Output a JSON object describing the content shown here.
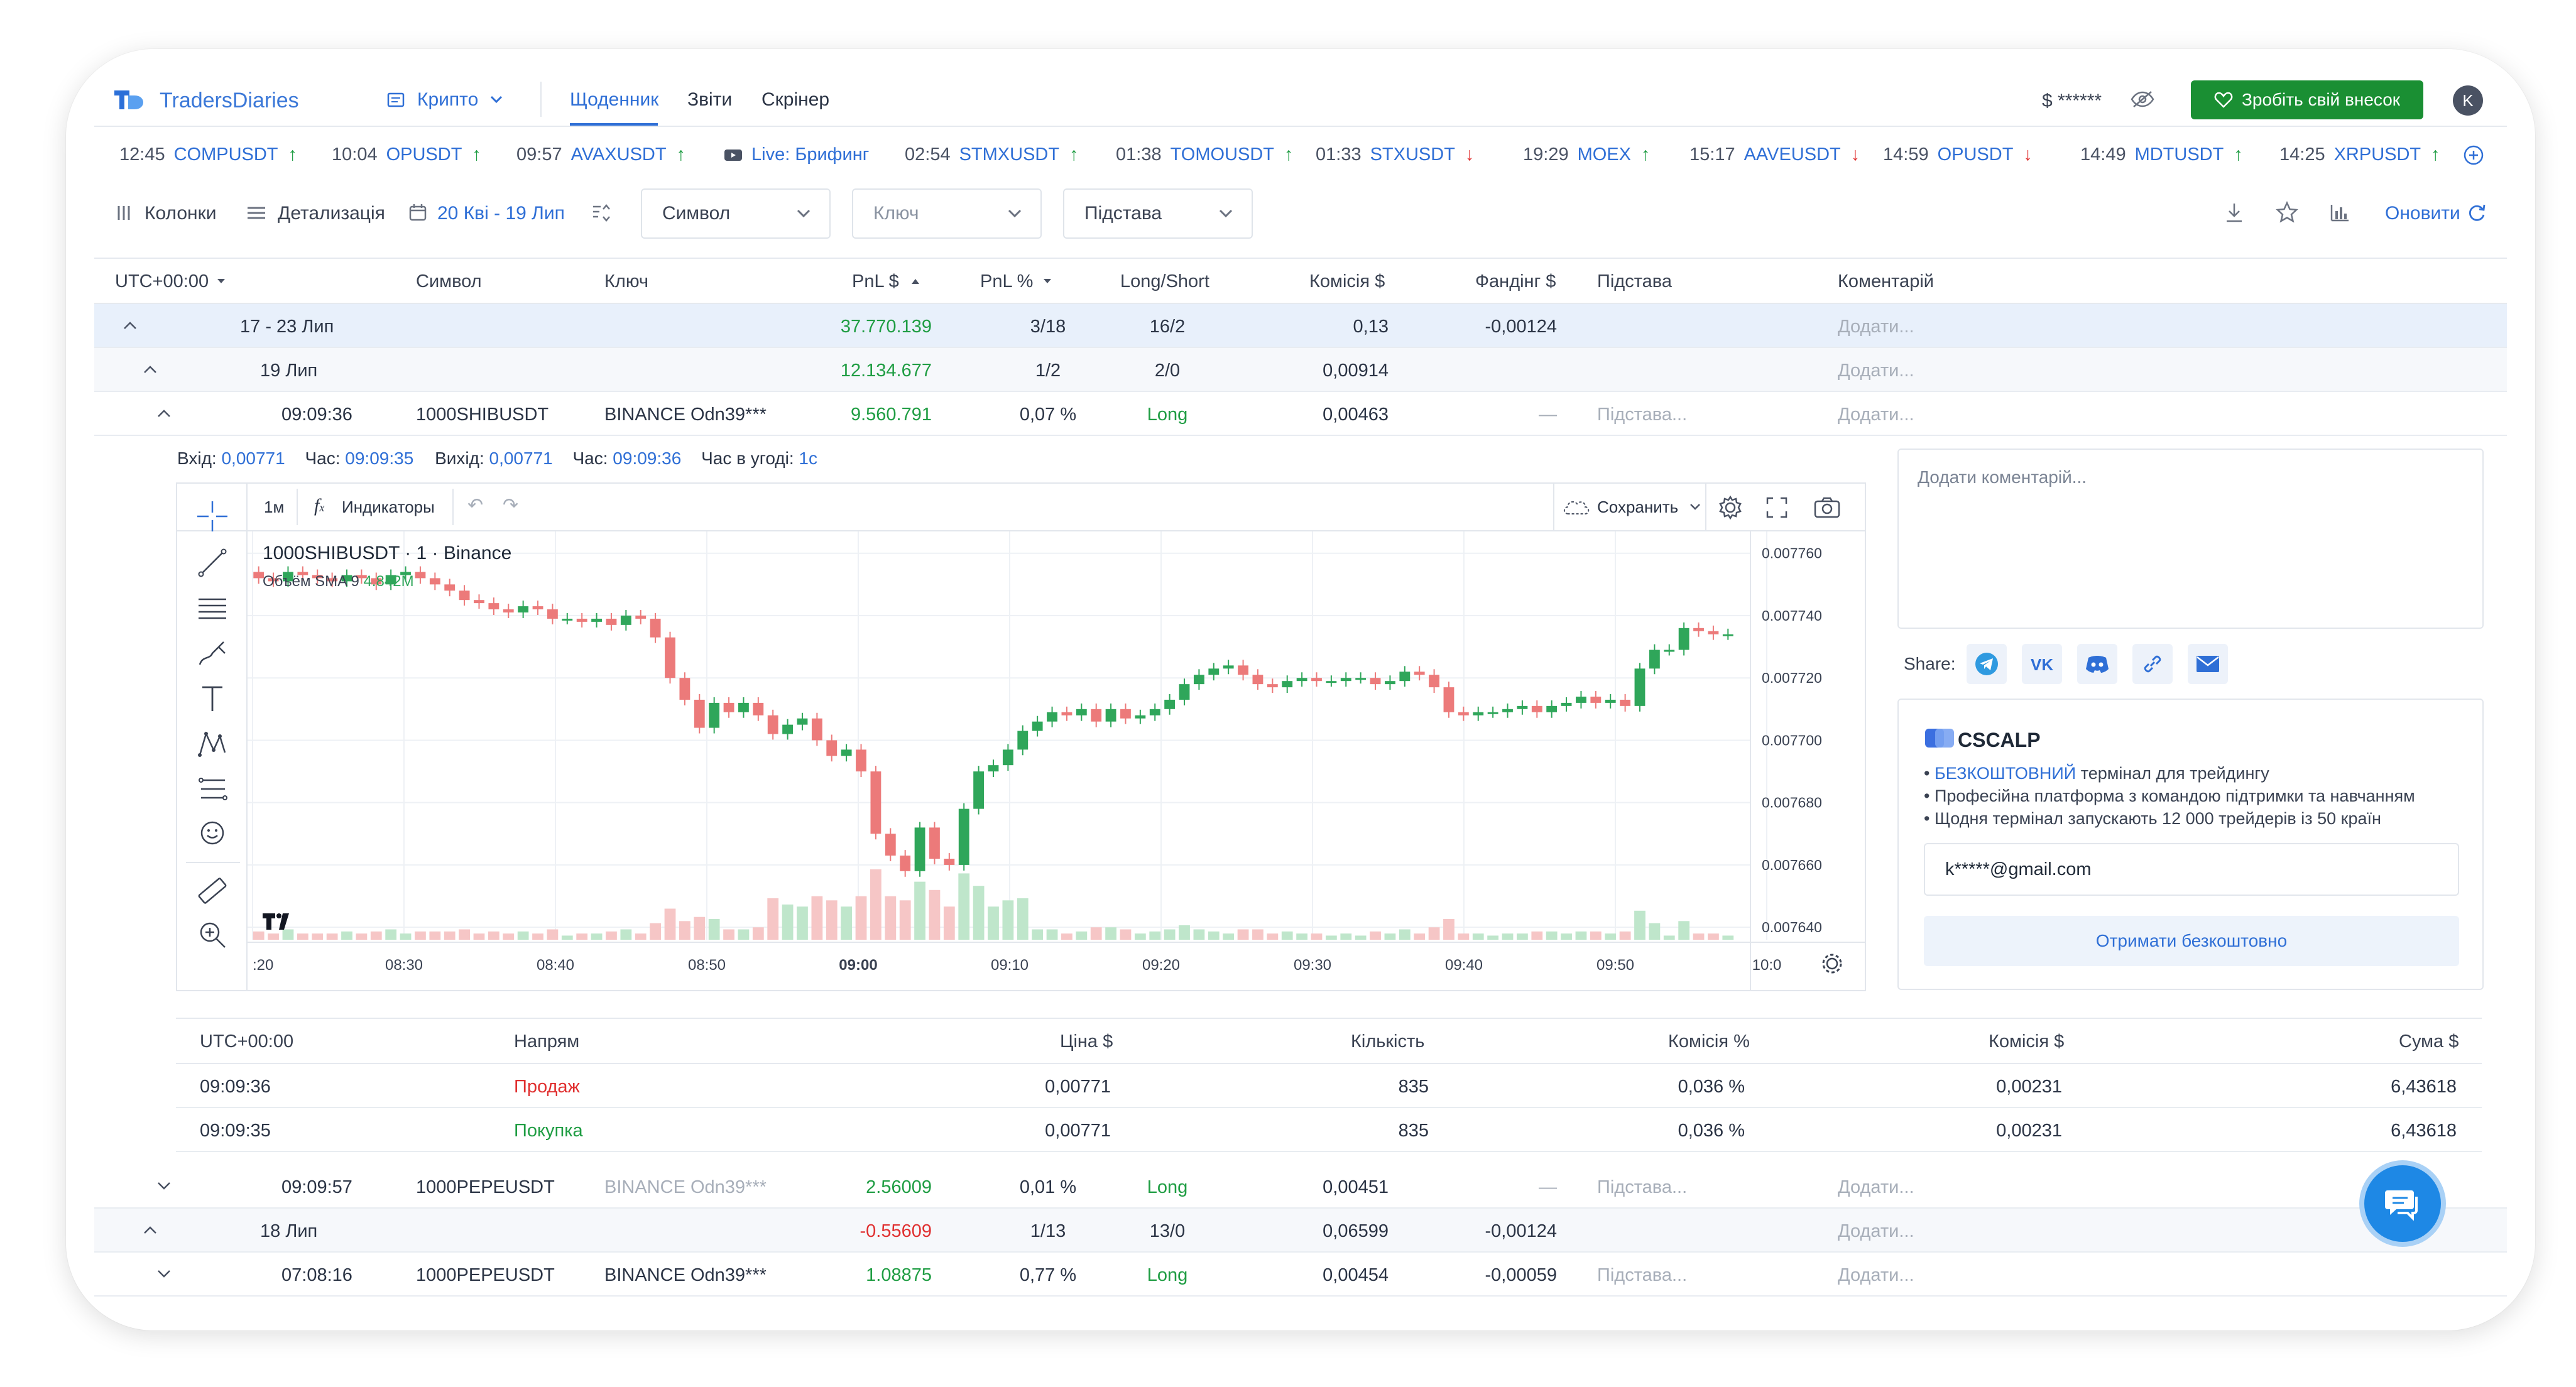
{
  "brand": {
    "name": "TradersDiaries"
  },
  "nav": {
    "market": "Крипто",
    "tabs": [
      "Щоденник",
      "Звіти",
      "Скрінер"
    ],
    "balance": "$ ******",
    "donate": "Зробіть свій внесок",
    "avatar": "K"
  },
  "ticker": [
    {
      "time": "12:45",
      "symbol": "COMPUSDT",
      "dir": "up"
    },
    {
      "time": "10:04",
      "symbol": "OPUSDT",
      "dir": "up"
    },
    {
      "time": "09:57",
      "symbol": "AVAXUSDT",
      "dir": "up"
    },
    {
      "live": "Live: Брифинг"
    },
    {
      "time": "02:54",
      "symbol": "STMXUSDT",
      "dir": "up"
    },
    {
      "time": "01:38",
      "symbol": "TOMOUSDT",
      "dir": "up"
    },
    {
      "time": "01:33",
      "symbol": "STXUSDT",
      "dir": "down"
    },
    {
      "time": "19:29",
      "symbol": "MOEX",
      "dir": "up"
    },
    {
      "time": "15:17",
      "symbol": "AAVEUSDT",
      "dir": "down"
    },
    {
      "time": "14:59",
      "symbol": "OPUSDT",
      "dir": "down"
    },
    {
      "time": "14:49",
      "symbol": "MDTUSDT",
      "dir": "up"
    },
    {
      "time": "14:25",
      "symbol": "XRPUSDT",
      "dir": "up"
    }
  ],
  "toolbar": {
    "columns": "Колонки",
    "details": "Детализація",
    "range": "20 Кві - 19 Лип",
    "symbol_dd": "Символ",
    "key_dd": "Ключ",
    "reason_dd": "Підстава",
    "refresh": "Оновити"
  },
  "table": {
    "headers": {
      "tz": "UTC+00:00",
      "symbol": "Символ",
      "key": "Ключ",
      "pnl_usd": "PnL $",
      "pnl_pct": "PnL %",
      "ls": "Long/Short",
      "fee": "Комісія $",
      "funding": "Фандінг $",
      "reason": "Підстава",
      "comment": "Коментарій"
    },
    "rows": [
      {
        "label": "17 - 23 Лип",
        "pnl": "37.770.139",
        "pct": "3/18",
        "ls": "16/2",
        "fee": "0,13",
        "funding": "-0,00124",
        "comment": "Додати..."
      },
      {
        "label": "19 Лип",
        "pnl": "12.134.677",
        "pct": "1/2",
        "ls": "2/0",
        "fee": "0,00914",
        "comment": "Додати..."
      },
      {
        "label": "09:09:36",
        "symbol": "1000SHIBUSDT",
        "key": "BINANCE Odn39***",
        "pnl": "9.560.791",
        "pct": "0,07 %",
        "ls": "Long",
        "fee": "0,00463",
        "funding": "—",
        "reason": "Підстава...",
        "comment": "Додати..."
      },
      {
        "label": "09:09:57",
        "symbol": "1000PEPEUSDT",
        "key": "BINANCE Odn39***",
        "pnl": "2.56009",
        "pct": "0,01 %",
        "ls": "Long",
        "fee": "0,00451",
        "funding": "—",
        "reason": "Підстава...",
        "comment": "Додати..."
      },
      {
        "label": "18 Лип",
        "pnl": "-0.55609",
        "pct": "1/13",
        "ls": "13/0",
        "fee": "0,06599",
        "funding": "-0,00124",
        "comment": "Додати..."
      },
      {
        "label": "07:08:16",
        "symbol": "1000PEPEUSDT",
        "key": "BINANCE Odn39***",
        "pnl": "1.08875",
        "pct": "0,77 %",
        "ls": "Long",
        "fee": "0,00454",
        "funding": "-0,00059",
        "reason": "Підстава...",
        "comment": "Додати..."
      }
    ]
  },
  "trade": {
    "entry_label": "Вхід:",
    "entry": "0,00771",
    "time_label": "Час:",
    "entry_time": "09:09:35",
    "exit_label": "Вихід:",
    "exit": "0,00771",
    "exit_time": "09:09:36",
    "duration_label": "Час в угоді:",
    "duration": "1с"
  },
  "chart": {
    "interval": "1м",
    "indicators": "Индикаторы",
    "save": "Сохранить",
    "legend_symbol": "1000SHIBUSDT · 1 · Binance",
    "volume_label": "Объём SMA 9",
    "volume_value": "4.842M",
    "colors": {
      "up": "#2fa65a",
      "down": "#ec7a7a"
    }
  },
  "chart_data": {
    "type": "candlestick",
    "title": "1000SHIBUSDT · 1 · Binance",
    "xlabel": "",
    "ylabel": "",
    "x_ticks": [
      ":20",
      "08:30",
      "08:40",
      "08:50",
      "09:00",
      "09:10",
      "09:20",
      "09:30",
      "09:40",
      "09:50",
      "10:0"
    ],
    "y_ticks": [
      "0.007760",
      "0.007740",
      "0.007720",
      "0.007700",
      "0.007680",
      "0.007660",
      "0.007640"
    ],
    "ylim": [
      0.007636,
      0.007767
    ],
    "close": [
      0.007752,
      0.007751,
      0.007754,
      0.007753,
      0.007752,
      0.007751,
      0.007753,
      0.007752,
      0.00775,
      0.007753,
      0.007754,
      0.007752,
      0.00775,
      0.007748,
      0.007745,
      0.007744,
      0.007742,
      0.007741,
      0.007743,
      0.007742,
      0.007739,
      0.007739,
      0.007738,
      0.007739,
      0.007737,
      0.00774,
      0.007739,
      0.007733,
      0.00772,
      0.007713,
      0.007704,
      0.007712,
      0.007709,
      0.007712,
      0.007708,
      0.007702,
      0.007705,
      0.007707,
      0.0077,
      0.007695,
      0.007697,
      0.00769,
      0.00767,
      0.007663,
      0.007658,
      0.007672,
      0.007662,
      0.00766,
      0.007678,
      0.00769,
      0.007692,
      0.007697,
      0.007703,
      0.007706,
      0.007709,
      0.007708,
      0.00771,
      0.007706,
      0.00771,
      0.007707,
      0.007708,
      0.00771,
      0.007713,
      0.007718,
      0.007721,
      0.007723,
      0.007724,
      0.007721,
      0.007718,
      0.007717,
      0.007719,
      0.00772,
      0.007719,
      0.007719,
      0.00772,
      0.00772,
      0.007718,
      0.007719,
      0.007722,
      0.007721,
      0.007717,
      0.007709,
      0.007708,
      0.007709,
      0.007709,
      0.00771,
      0.007711,
      0.007709,
      0.007711,
      0.007712,
      0.007714,
      0.007712,
      0.007713,
      0.007711,
      0.007723,
      0.007729,
      0.007729,
      0.007736,
      0.007735,
      0.007734,
      0.007734
    ],
    "volume_ylim": [
      0,
      100
    ]
  },
  "fills": {
    "headers": {
      "tz": "UTC+00:00",
      "dir": "Напрям",
      "price": "Ціна $",
      "qty": "Кількість",
      "fee_pct": "Комісія %",
      "fee_usd": "Комісія $",
      "sum": "Сума $"
    },
    "rows": [
      {
        "time": "09:09:36",
        "dir": "Продаж",
        "price": "0,00771",
        "qty": "835",
        "fee_pct": "0,036 %",
        "fee_usd": "0,00231",
        "sum": "6,43618"
      },
      {
        "time": "09:09:35",
        "dir": "Покупка",
        "price": "0,00771",
        "qty": "835",
        "fee_pct": "0,036 %",
        "fee_usd": "0,00231",
        "sum": "6,43618"
      }
    ]
  },
  "side": {
    "comment_placeholder": "Додати коментарій...",
    "share": "Share:",
    "promo_brand": "CSCALP",
    "promo_b1_link": "БЕЗКОШТОВНИЙ",
    "promo_b1_rest": " термінал для трейдингу",
    "promo_b2": "Професійна платформа з командою підтримки та навчанням",
    "promo_b3": "Щодня термінал запускають 12 000 трейдерів із 50 країн",
    "email": "k*****@gmail.com",
    "cta": "Отримати безкоштовно"
  }
}
